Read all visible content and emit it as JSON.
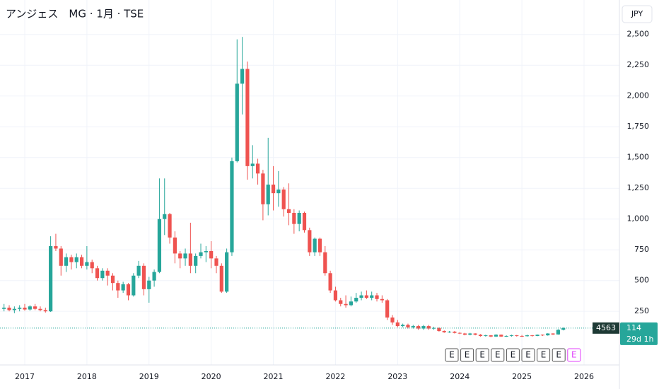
{
  "chart_data": {
    "type": "candlestick",
    "title": "アンジェス　MG · 1月 · TSE",
    "currency": "JPY",
    "symbol": "4563",
    "countdown": "29d 1h",
    "up_color": "#26a69a",
    "down_color": "#ef5350",
    "categories": [
      null,
      null,
      null,
      null,
      "2017",
      null,
      null,
      null,
      null,
      null,
      null,
      null,
      null,
      null,
      null,
      null,
      "2018",
      null,
      null,
      null,
      null,
      null,
      null,
      null,
      null,
      null,
      null,
      null,
      "2019",
      null,
      null,
      null,
      null,
      null,
      null,
      null,
      null,
      null,
      null,
      null,
      "2020",
      null,
      null,
      null,
      null,
      null,
      null,
      null,
      null,
      null,
      null,
      null,
      "2021",
      null,
      null,
      null,
      null,
      null,
      null,
      null,
      null,
      null,
      null,
      null,
      "2022",
      null,
      null,
      null,
      null,
      null,
      null,
      null,
      null,
      null,
      null,
      null,
      "2023",
      null,
      null,
      null,
      null,
      null,
      null,
      null,
      null,
      null,
      null,
      null,
      "2024",
      null,
      null,
      null,
      null,
      null,
      null,
      null,
      null,
      null,
      null,
      null,
      "2025",
      null,
      null,
      null,
      null,
      null,
      null,
      null,
      null,
      null,
      null,
      null,
      "2026"
    ],
    "open": [
      270,
      280,
      260,
      270,
      280,
      265,
      290,
      270,
      260,
      250,
      780,
      760,
      620,
      690,
      650,
      690,
      620,
      650,
      600,
      520,
      580,
      540,
      480,
      420,
      470,
      380,
      540,
      620,
      430,
      500,
      570,
      1000,
      1040,
      850,
      720,
      680,
      720,
      620,
      700,
      730,
      740,
      680,
      620,
      410,
      730,
      1470,
      2100,
      2220,
      1430,
      1450,
      1370,
      1120,
      1280,
      1210,
      1240,
      1080,
      1050,
      960,
      1050,
      910,
      730,
      840,
      730,
      560,
      420,
      340,
      310,
      300,
      330,
      360,
      380,
      360,
      380,
      350,
      340,
      200,
      160,
      130,
      140,
      120,
      130,
      110,
      130,
      110,
      115,
      90,
      80,
      85,
      75,
      70,
      60,
      70,
      60,
      50,
      55,
      45,
      60,
      45,
      50,
      55,
      50,
      48,
      55,
      50,
      60,
      55,
      70,
      62,
      100,
      null,
      null,
      null,
      null
    ],
    "high": [
      310,
      300,
      290,
      300,
      310,
      300,
      310,
      290,
      280,
      860,
      880,
      780,
      720,
      710,
      720,
      710,
      780,
      670,
      620,
      600,
      600,
      560,
      500,
      490,
      480,
      560,
      660,
      640,
      530,
      590,
      1330,
      1330,
      1050,
      900,
      740,
      760,
      970,
      720,
      800,
      780,
      820,
      700,
      640,
      760,
      1500,
      2460,
      2480,
      2280,
      1600,
      1490,
      1400,
      1660,
      1430,
      1390,
      1260,
      1290,
      1080,
      1070,
      1060,
      930,
      850,
      850,
      780,
      580,
      450,
      360,
      380,
      370,
      400,
      410,
      420,
      410,
      400,
      380,
      350,
      220,
      180,
      150,
      150,
      140,
      140,
      140,
      140,
      125,
      120,
      95,
      90,
      90,
      80,
      75,
      75,
      72,
      65,
      60,
      58,
      65,
      62,
      55,
      60,
      58,
      58,
      60,
      58,
      62,
      62,
      72,
      72,
      105,
      120,
      null,
      null,
      null,
      null
    ],
    "low": [
      250,
      250,
      235,
      250,
      255,
      255,
      260,
      250,
      240,
      245,
      740,
      540,
      570,
      590,
      600,
      600,
      590,
      560,
      500,
      500,
      460,
      420,
      360,
      400,
      340,
      370,
      520,
      380,
      320,
      450,
      560,
      870,
      800,
      640,
      600,
      620,
      560,
      560,
      680,
      650,
      600,
      560,
      400,
      400,
      700,
      1460,
      1850,
      1320,
      1330,
      1280,
      990,
      1030,
      1070,
      1100,
      1020,
      950,
      880,
      900,
      890,
      700,
      700,
      700,
      540,
      400,
      330,
      290,
      280,
      290,
      320,
      340,
      350,
      340,
      330,
      320,
      180,
      140,
      120,
      120,
      110,
      110,
      100,
      100,
      100,
      100,
      85,
      75,
      75,
      70,
      65,
      55,
      55,
      55,
      45,
      45,
      40,
      42,
      42,
      42,
      45,
      45,
      42,
      45,
      45,
      48,
      50,
      52,
      58,
      60,
      95,
      null,
      null,
      null,
      null
    ],
    "close": [
      280,
      260,
      270,
      280,
      265,
      290,
      270,
      260,
      250,
      780,
      760,
      620,
      690,
      650,
      690,
      620,
      650,
      600,
      520,
      580,
      540,
      480,
      420,
      470,
      380,
      540,
      620,
      430,
      500,
      570,
      1000,
      1040,
      850,
      720,
      680,
      720,
      620,
      700,
      730,
      740,
      680,
      620,
      410,
      730,
      1470,
      2100,
      2220,
      1430,
      1450,
      1370,
      1120,
      1280,
      1210,
      1240,
      1080,
      1050,
      960,
      1050,
      910,
      730,
      840,
      730,
      560,
      420,
      340,
      310,
      300,
      330,
      360,
      380,
      360,
      380,
      350,
      340,
      200,
      160,
      130,
      140,
      120,
      130,
      110,
      130,
      110,
      115,
      90,
      80,
      85,
      75,
      70,
      60,
      70,
      60,
      50,
      55,
      45,
      60,
      45,
      50,
      55,
      50,
      48,
      55,
      50,
      60,
      55,
      70,
      62,
      100,
      114,
      null,
      null,
      null,
      null
    ],
    "ylim": [
      -180,
      2780
    ],
    "yticks": [
      250,
      500,
      750,
      {
        "value": 1000,
        "label": "1,000"
      },
      {
        "value": 1250,
        "label": "1,250"
      },
      {
        "value": 1500,
        "label": "1,500"
      },
      {
        "value": 1750,
        "label": "1,750"
      },
      {
        "value": 2000,
        "label": "2,000"
      },
      {
        "value": 2250,
        "label": "2,250"
      },
      {
        "value": 2500,
        "label": "2,500"
      }
    ],
    "grid": true,
    "earnings": [
      "E",
      "E",
      "E",
      "E",
      "E",
      "E",
      "E",
      "E"
    ],
    "upcoming_earnings": "E"
  }
}
